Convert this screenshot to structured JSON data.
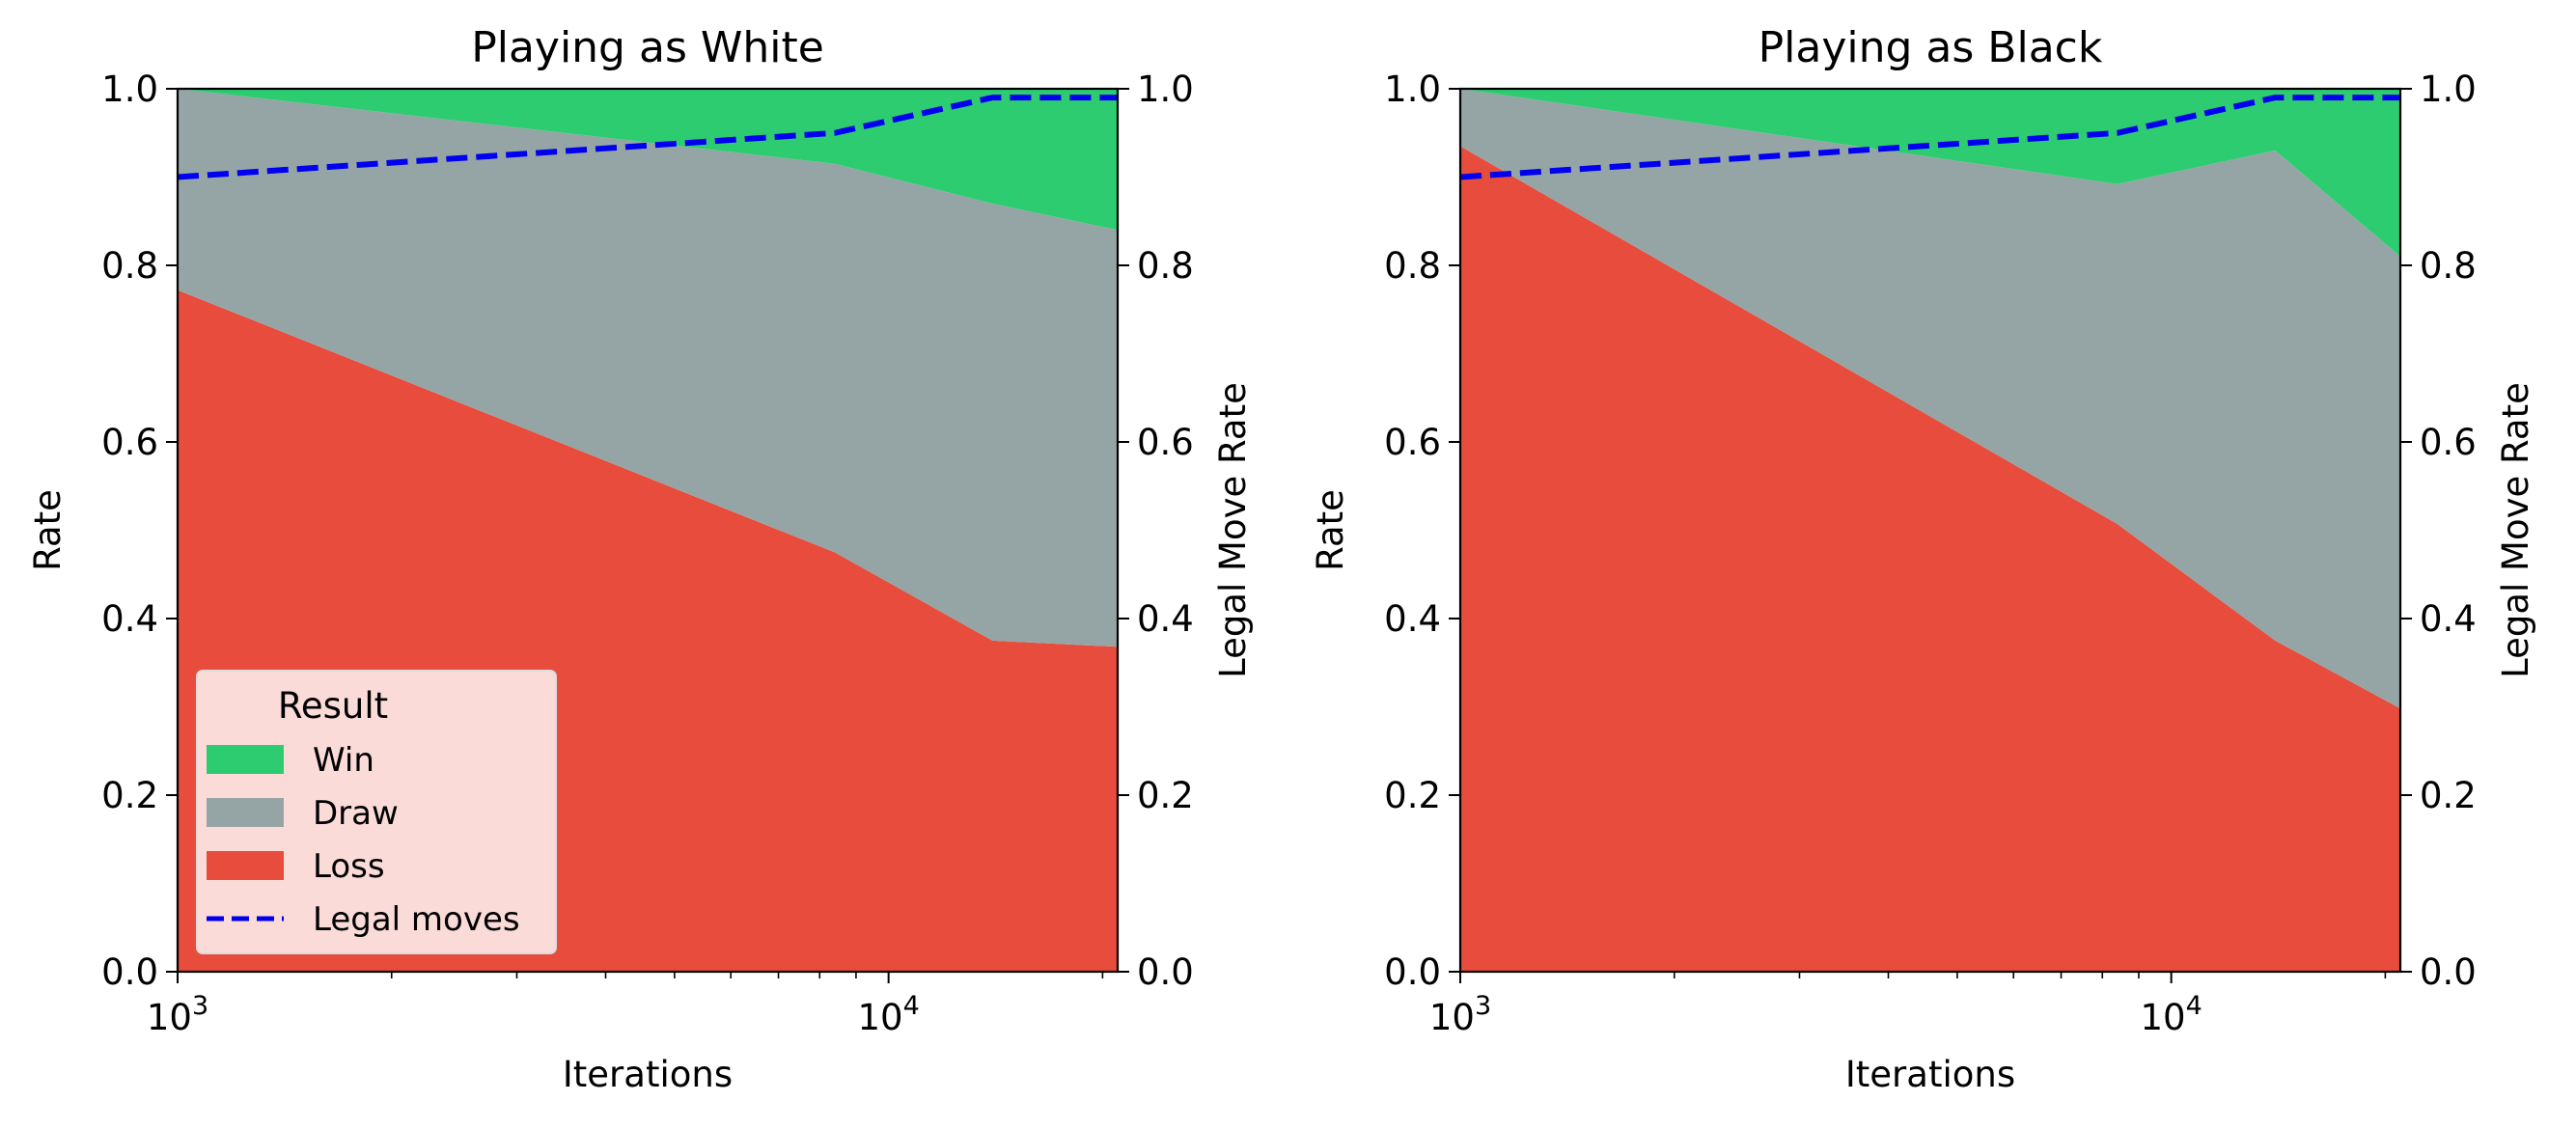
{
  "chart_data": [
    {
      "type": "area",
      "title": "Playing as White",
      "xlabel": "Iterations",
      "ylabel": "Rate",
      "y2label": "Legal Move Rate",
      "xscale": "log",
      "xlim": [
        1000,
        21000
      ],
      "ylim": [
        0,
        1
      ],
      "y2lim": [
        0,
        1
      ],
      "x": [
        1000,
        8400,
        14000,
        21000
      ],
      "xticks": [
        {
          "value": 1000,
          "base": "10",
          "exp": "3"
        },
        {
          "value": 10000,
          "base": "10",
          "exp": "4"
        }
      ],
      "yticks": [
        "0.0",
        "0.2",
        "0.4",
        "0.6",
        "0.8",
        "1.0"
      ],
      "stack_order": [
        "Loss",
        "Draw",
        "Win"
      ],
      "series": [
        {
          "name": "Win",
          "kind": "stacked-area",
          "color": "#2ecc71",
          "values": [
            0.0,
            0.085,
            0.13,
            0.16
          ]
        },
        {
          "name": "Draw",
          "kind": "stacked-area",
          "color": "#95a5a6",
          "values": [
            0.228,
            0.44,
            0.495,
            0.472
          ]
        },
        {
          "name": "Loss",
          "kind": "stacked-area",
          "color": "#e74c3c",
          "values": [
            0.772,
            0.475,
            0.375,
            0.368
          ]
        },
        {
          "name": "Legal moves",
          "kind": "dashed-line",
          "axis": "right",
          "color": "#0000ee",
          "values": [
            0.9,
            0.95,
            0.99,
            0.99
          ]
        }
      ],
      "legend": {
        "title": "Result",
        "placement": "lower-left",
        "entries": [
          "Win",
          "Draw",
          "Loss",
          "Legal moves"
        ]
      }
    },
    {
      "type": "area",
      "title": "Playing as Black",
      "xlabel": "Iterations",
      "ylabel": "Rate",
      "y2label": "Legal Move Rate",
      "xscale": "log",
      "xlim": [
        1000,
        21000
      ],
      "ylim": [
        0,
        1
      ],
      "y2lim": [
        0,
        1
      ],
      "x": [
        1000,
        8400,
        14000,
        21000
      ],
      "xticks": [
        {
          "value": 1000,
          "base": "10",
          "exp": "3"
        },
        {
          "value": 10000,
          "base": "10",
          "exp": "4"
        }
      ],
      "yticks": [
        "0.0",
        "0.2",
        "0.4",
        "0.6",
        "0.8",
        "1.0"
      ],
      "stack_order": [
        "Loss",
        "Draw",
        "Win"
      ],
      "series": [
        {
          "name": "Win",
          "kind": "stacked-area",
          "color": "#2ecc71",
          "values": [
            0.0,
            0.108,
            0.07,
            0.19
          ]
        },
        {
          "name": "Draw",
          "kind": "stacked-area",
          "color": "#95a5a6",
          "values": [
            0.065,
            0.385,
            0.555,
            0.512
          ]
        },
        {
          "name": "Loss",
          "kind": "stacked-area",
          "color": "#e74c3c",
          "values": [
            0.935,
            0.507,
            0.375,
            0.298
          ]
        },
        {
          "name": "Legal moves",
          "kind": "dashed-line",
          "axis": "right",
          "color": "#0000ee",
          "values": [
            0.9,
            0.95,
            0.99,
            0.99
          ]
        }
      ]
    }
  ]
}
